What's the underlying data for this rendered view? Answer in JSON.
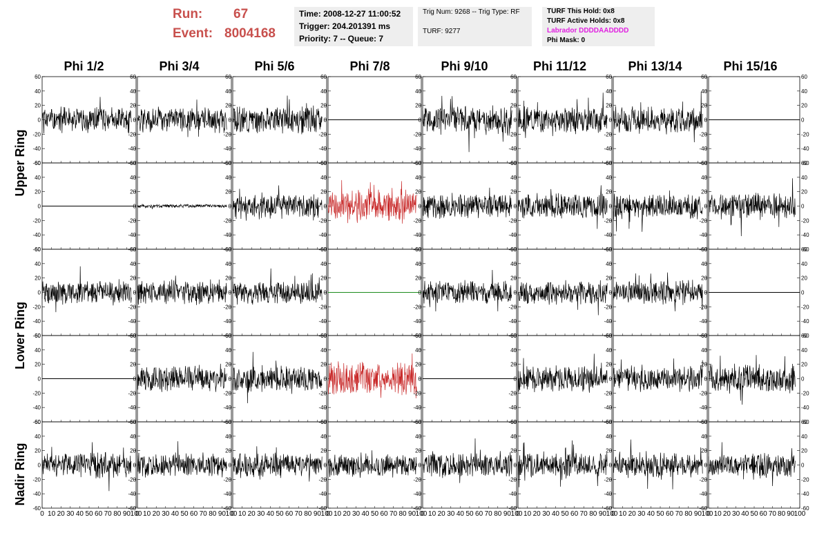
{
  "header": {
    "run_label": "Run:",
    "run_value": "67",
    "event_label": "Event:",
    "event_value": "8004168",
    "time_lines": [
      "Time: 2008-12-27 11:00:52",
      "Trigger: 204.201391 ms",
      "Priority: 7 -- Queue: 7"
    ],
    "trig_lines": [
      "Trig Num: 9268 -- Trig Type: RF",
      "TURF: 9277"
    ],
    "turf_lines": [
      "TURF This Hold: 0x8",
      "TURF Active Holds: 0x8",
      "Labrador DDDDAADDDD",
      "Phi Mask: 0"
    ]
  },
  "colors": {
    "run_text": "#c8504d",
    "labrador_text": "#e020e0",
    "trace_default": "#000000",
    "trace_red": "#c82828",
    "trace_green": "#1a8a1a"
  },
  "columns": [
    "Phi 1/2",
    "Phi 3/4",
    "Phi 5/6",
    "Phi 7/8",
    "Phi 9/10",
    "Phi 11/12",
    "Phi 13/14",
    "Phi 15/16"
  ],
  "rows": [
    "Upper Ring",
    "Lower Ring",
    "Nadir Ring"
  ],
  "chart_data": {
    "type": "line",
    "title": "",
    "xlabel": "",
    "ylabel": "",
    "xlim": [
      0,
      100
    ],
    "ylim": [
      -60,
      60
    ],
    "x_ticks": [
      0,
      10,
      20,
      30,
      40,
      50,
      60,
      70,
      80,
      90,
      100
    ],
    "y_ticks": [
      -60,
      -40,
      -20,
      0,
      20,
      40,
      60
    ],
    "panels": [
      [
        {
          "kind": "noise",
          "amp": 14,
          "color": "black",
          "seed": 1
        },
        {
          "kind": "noise",
          "amp": 14,
          "color": "black",
          "seed": 2
        },
        {
          "kind": "noise",
          "amp": 15,
          "color": "black",
          "seed": 3
        },
        {
          "kind": "flat",
          "color": "black"
        },
        {
          "kind": "noise",
          "amp": 16,
          "color": "black",
          "seed": 5
        },
        {
          "kind": "noise",
          "amp": 14,
          "color": "black",
          "seed": 6
        },
        {
          "kind": "noise",
          "amp": 15,
          "color": "black",
          "seed": 7
        },
        {
          "kind": "flat",
          "color": "black"
        }
      ],
      [
        {
          "kind": "flat",
          "color": "black"
        },
        {
          "kind": "noise",
          "amp": 2,
          "color": "black",
          "seed": 10
        },
        {
          "kind": "noise",
          "amp": 14,
          "color": "black",
          "seed": 11
        },
        {
          "kind": "noise",
          "amp": 18,
          "color": "red",
          "seed": 12
        },
        {
          "kind": "noise",
          "amp": 14,
          "color": "black",
          "seed": 13
        },
        {
          "kind": "noise",
          "amp": 14,
          "color": "black",
          "seed": 14
        },
        {
          "kind": "noise",
          "amp": 14,
          "color": "black",
          "seed": 15
        },
        {
          "kind": "noise",
          "amp": 14,
          "color": "black",
          "seed": 16
        }
      ],
      [
        {
          "kind": "noise",
          "amp": 13,
          "color": "black",
          "seed": 21
        },
        {
          "kind": "noise",
          "amp": 13,
          "color": "black",
          "seed": 22
        },
        {
          "kind": "noise",
          "amp": 13,
          "color": "black",
          "seed": 23
        },
        {
          "kind": "flat",
          "color": "green"
        },
        {
          "kind": "noise",
          "amp": 13,
          "color": "black",
          "seed": 25
        },
        {
          "kind": "noise",
          "amp": 13,
          "color": "black",
          "seed": 26
        },
        {
          "kind": "noise",
          "amp": 13,
          "color": "black",
          "seed": 27
        },
        {
          "kind": "flat",
          "color": "black"
        }
      ],
      [
        {
          "kind": "flat",
          "color": "black"
        },
        {
          "kind": "noise",
          "amp": 14,
          "color": "black",
          "seed": 31
        },
        {
          "kind": "noise",
          "amp": 14,
          "color": "black",
          "seed": 32
        },
        {
          "kind": "noise",
          "amp": 18,
          "color": "red",
          "seed": 33
        },
        {
          "kind": "flat",
          "color": "black"
        },
        {
          "kind": "noise",
          "amp": 14,
          "color": "black",
          "seed": 35
        },
        {
          "kind": "noise",
          "amp": 14,
          "color": "black",
          "seed": 36
        },
        {
          "kind": "noise",
          "amp": 16,
          "color": "black",
          "seed": 37
        }
      ],
      [
        {
          "kind": "noise",
          "amp": 14,
          "color": "black",
          "seed": 41
        },
        {
          "kind": "noise",
          "amp": 13,
          "color": "black",
          "seed": 42
        },
        {
          "kind": "noise",
          "amp": 13,
          "color": "black",
          "seed": 43
        },
        {
          "kind": "noise",
          "amp": 13,
          "color": "black",
          "seed": 44
        },
        {
          "kind": "noise",
          "amp": 14,
          "color": "black",
          "seed": 45
        },
        {
          "kind": "noise",
          "amp": 14,
          "color": "black",
          "seed": 46
        },
        {
          "kind": "noise",
          "amp": 14,
          "color": "black",
          "seed": 47
        },
        {
          "kind": "noise",
          "amp": 14,
          "color": "black",
          "seed": 48
        }
      ]
    ]
  }
}
